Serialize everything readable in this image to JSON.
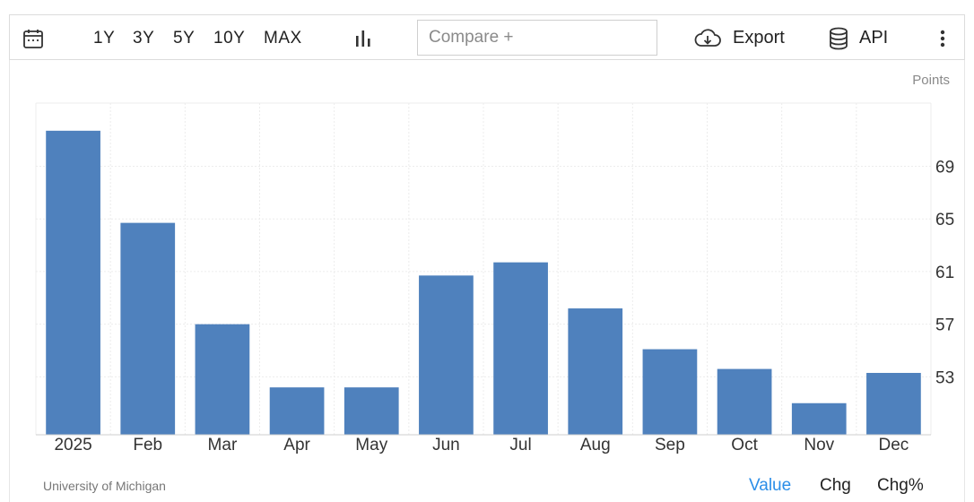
{
  "toolbar": {
    "ranges": [
      "1Y",
      "3Y",
      "5Y",
      "10Y",
      "MAX"
    ],
    "compare_placeholder": "Compare +",
    "export_label": "Export",
    "api_label": "API"
  },
  "chart_meta": {
    "unit_label": "Points",
    "source": "University of Michigan"
  },
  "footer": {
    "value_label": "Value",
    "chg_label": "Chg",
    "chgpct_label": "Chg%"
  },
  "colors": {
    "bar": "#4f81bd",
    "accent": "#2b8ee8",
    "grid": "#ececec"
  },
  "chart_data": {
    "type": "bar",
    "categories": [
      "2025",
      "Feb",
      "Mar",
      "Apr",
      "May",
      "Jun",
      "Jul",
      "Aug",
      "Sep",
      "Oct",
      "Nov",
      "Dec"
    ],
    "values": [
      71.7,
      64.7,
      57.0,
      52.2,
      52.2,
      60.7,
      61.7,
      58.2,
      55.1,
      53.6,
      51.0,
      53.3
    ],
    "yticks": [
      53,
      57,
      61,
      65,
      69
    ],
    "ylim": [
      48.6,
      73.8
    ],
    "ylabel": "Points",
    "grid": true,
    "y_axis_side": "right"
  }
}
